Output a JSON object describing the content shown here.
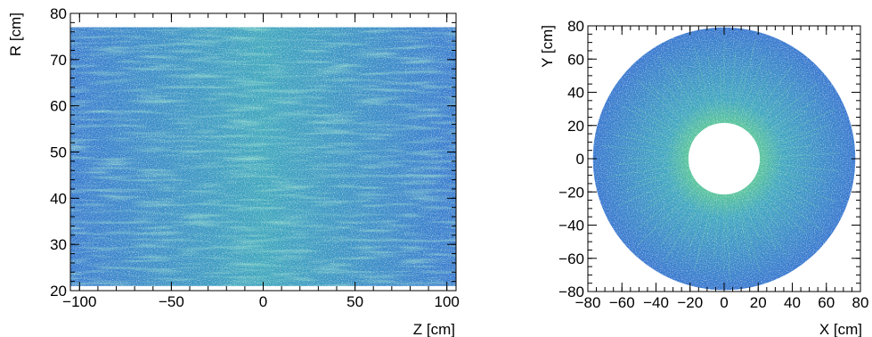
{
  "chart_data": [
    {
      "type": "heatmap",
      "title": "",
      "xlabel": "Z  [cm]",
      "ylabel": "R  [cm]",
      "xlim": [
        -105,
        105
      ],
      "ylim": [
        20,
        80
      ],
      "x_ticks": [
        -100,
        -50,
        0,
        50,
        100
      ],
      "y_ticks": [
        20,
        30,
        40,
        50,
        60,
        70,
        80
      ],
      "x_tick_labels": [
        "−100",
        "−50",
        "0",
        "50",
        "100"
      ],
      "y_tick_labels": [
        "20",
        "30",
        "40",
        "50",
        "60",
        "70",
        "80"
      ],
      "filled_region": {
        "shape": "rectangle",
        "z_range": [
          -105,
          105
        ],
        "r_range": [
          21,
          77
        ]
      },
      "grid": false
    },
    {
      "type": "heatmap",
      "title": "",
      "xlabel": "X  [cm]",
      "ylabel": "Y  [cm]",
      "xlim": [
        -80,
        80
      ],
      "ylim": [
        -80,
        80
      ],
      "x_ticks": [
        -80,
        -60,
        -40,
        -20,
        0,
        20,
        40,
        60,
        80
      ],
      "y_ticks": [
        -80,
        -60,
        -40,
        -20,
        0,
        20,
        40,
        60,
        80
      ],
      "x_tick_labels": [
        "−80",
        "−60",
        "−40",
        "−20",
        "0",
        "20",
        "40",
        "60",
        "80"
      ],
      "y_tick_labels": [
        "−80",
        "−60",
        "−40",
        "−20",
        "0",
        "20",
        "40",
        "60",
        "80"
      ],
      "filled_region": {
        "shape": "annulus",
        "inner_radius": 21,
        "outer_radius": 77
      },
      "grid": false
    }
  ],
  "colors": {
    "fill_base": "#3a7fd0",
    "fill_mid": "#3c9bc8",
    "fill_high": "#4fb8a0",
    "fill_speckle": "#ffffff",
    "axis": "#000000"
  }
}
